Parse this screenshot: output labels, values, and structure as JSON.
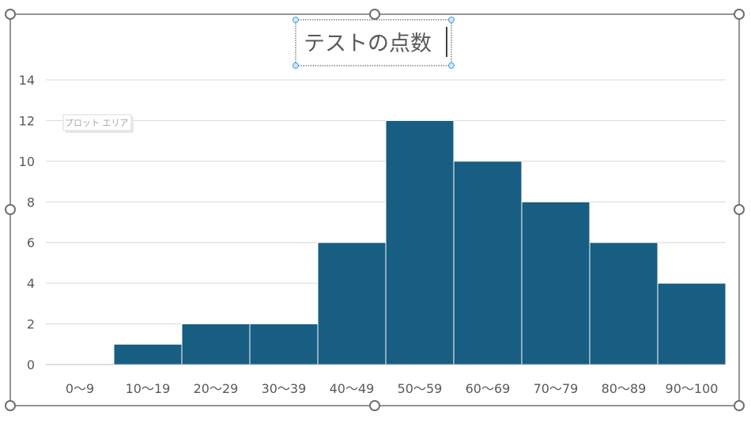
{
  "chart_data": {
    "type": "bar",
    "title": "テストの点数",
    "categories": [
      "0〜9",
      "10〜19",
      "20〜29",
      "30〜39",
      "40〜49",
      "50〜59",
      "60〜69",
      "70〜79",
      "80〜89",
      "90〜100"
    ],
    "series": [
      {
        "values": [
          0,
          1,
          2,
          2,
          6,
          12,
          10,
          8,
          6,
          4
        ]
      }
    ],
    "xlabel": "",
    "ylabel": "",
    "ylim": [
      0,
      14
    ],
    "yticks": [
      0,
      2,
      4,
      6,
      8,
      10,
      12,
      14
    ],
    "grid": true,
    "legend": "none",
    "bar_color": "#175e82"
  },
  "ui": {
    "plot_area_tooltip": "プロット エリア",
    "selection_color": "#4aa3df",
    "frame_color": "#707070"
  }
}
